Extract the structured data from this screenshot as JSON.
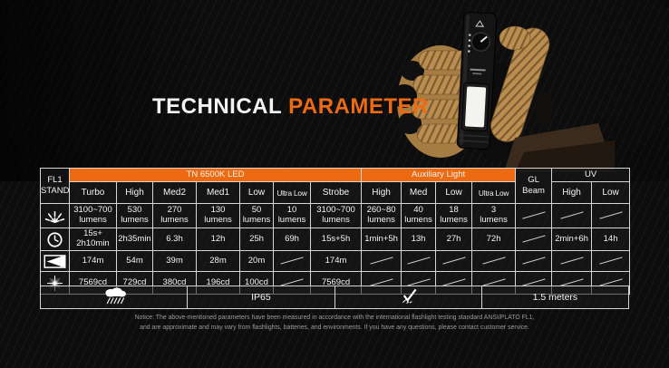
{
  "colors": {
    "accent_orange": "#ed6a10",
    "table_border": "#d6d6d6",
    "background": "#0d0d0d",
    "text_white": "#f4f4f4",
    "notice_gray": "#9a9a9a"
  },
  "title": {
    "white_part": "TECHNICAL",
    "orange_part": "PARAMETER"
  },
  "table": {
    "corner": {
      "line1": "FL1",
      "line2": "STANDARD"
    },
    "band": {
      "main_group": "TN 6500K LED",
      "aux_group": "Auxiliary Light",
      "gl_beam": "GL\nBeam",
      "uv_group": "UV"
    },
    "mode_headers": [
      "Turbo",
      "High",
      "Med2",
      "Med1",
      "Low",
      "Ultra Low",
      "Strobe",
      "High",
      "Med",
      "Low",
      "Ultra Low",
      "High",
      "Low"
    ],
    "row_icons": [
      "brightness-icon",
      "runtime-clock-icon",
      "beam-distance-icon",
      "peak-intensity-icon"
    ],
    "rows": [
      {
        "cells": [
          "3100~700\nlumens",
          "530\nlumens",
          "270\nlumens",
          "130\nlumens",
          "50\nlumens",
          "10\nlumens",
          "3100~700\nlumens",
          "260~80\nlumens",
          "40\nlumens",
          "18\nlumens",
          "3\nlumens",
          null,
          null,
          null
        ]
      },
      {
        "cells": [
          "15s+\n2h10min",
          "2h35min",
          "6.3h",
          "12h",
          "25h",
          "69h",
          "15s+5h",
          "1min+5h",
          "13h",
          "27h",
          "72h",
          null,
          "2min+6h",
          "14h"
        ]
      },
      {
        "cells": [
          "174m",
          "54m",
          "39m",
          "28m",
          "20m",
          null,
          "174m",
          null,
          null,
          null,
          null,
          null,
          null,
          null
        ]
      },
      {
        "cells": [
          "7569cd",
          "729cd",
          "380cd",
          "196cd",
          "100cd",
          null,
          "7569cd",
          null,
          null,
          null,
          null,
          null,
          null,
          null
        ]
      }
    ]
  },
  "summary": {
    "rain_icon": "rain-weather-icon",
    "ip_rating": "IP65",
    "impact_icon": "impact-resistance-check-icon",
    "drop_height": "1.5 meters"
  },
  "notice": "Notice: The above-mentioned parameters have been measured in accordance with the international flashlight testing standard ANSI/PLATO FL1,\nand are approximate and may vary from flashlights, batteries, and environments. If you have any questions, please contact customer service."
}
